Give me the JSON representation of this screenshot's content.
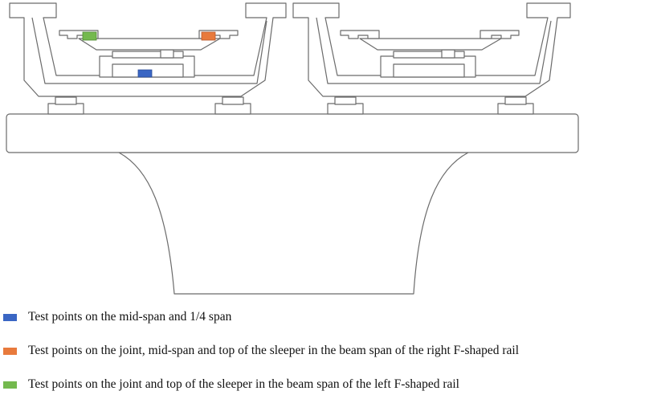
{
  "colors": {
    "outline": "#6b6b6b",
    "fill": "#ffffff",
    "blue_marker": "#3a66c4",
    "orange_marker": "#e87a3c",
    "green_marker": "#74b94e"
  },
  "legend": [
    {
      "label": "Test points on the mid-span and 1/4 span",
      "color": "#3a66c4"
    },
    {
      "label": "Test points on the joint, mid-span and top of the sleeper in the beam span of the right F-shaped rail",
      "color": "#e87a3c"
    },
    {
      "label": "Test points on the joint and top of the sleeper in the beam span of the left F-shaped rail",
      "color": "#74b94e"
    }
  ]
}
